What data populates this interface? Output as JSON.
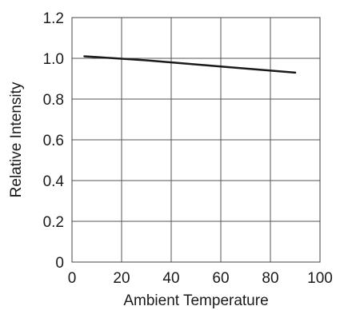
{
  "chart_data": {
    "type": "line",
    "xlabel": "Ambient Temperature",
    "ylabel": "Relative Intensity",
    "xlim": [
      0,
      100
    ],
    "ylim": [
      0,
      1.2
    ],
    "x_ticks": [
      "0",
      "20",
      "40",
      "60",
      "80",
      "100"
    ],
    "y_ticks": [
      "0",
      "0.2",
      "0.4",
      "0.6",
      "0.8",
      "1.0",
      "1.2"
    ],
    "grid": true,
    "series": [
      {
        "x": [
          5,
          30,
          60,
          90
        ],
        "values": [
          1.01,
          0.99,
          0.96,
          0.93
        ],
        "color": "#1a1a1a"
      }
    ]
  }
}
